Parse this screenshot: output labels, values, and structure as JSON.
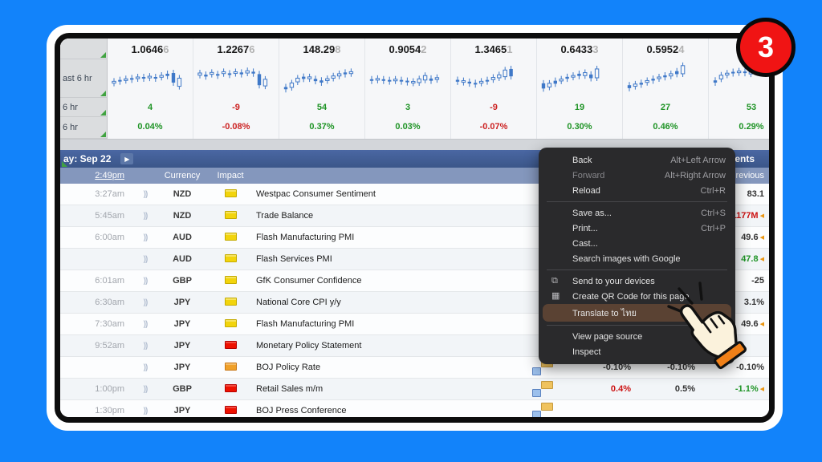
{
  "badge": {
    "label": "3"
  },
  "colors": {
    "frame_blue": "#1283fa",
    "candle_blue": "#3f78c8",
    "up_green": "#1f9426",
    "down_red": "#cc2222",
    "menu_highlight": "#5a4233",
    "badge_red": "#f01414",
    "impact_yellow": "#f2d40c",
    "impact_red": "#ee1100",
    "impact_orange": "#f0a028"
  },
  "market_panel": {
    "sidebar_rows": [
      "",
      "ast 6 hr",
      "6 hr",
      "6 hr"
    ],
    "tickers": [
      {
        "price": "1.0646",
        "price_last": "6",
        "change": "4",
        "pct": "0.04%",
        "dir": "up",
        "spark": [
          [
            62,
            5,
            1
          ],
          [
            58,
            4,
            0
          ],
          [
            55,
            4,
            1
          ],
          [
            53,
            4,
            0
          ],
          [
            50,
            4,
            1
          ],
          [
            50,
            4,
            0
          ],
          [
            48,
            4,
            1
          ],
          [
            50,
            4,
            0
          ],
          [
            46,
            5,
            1
          ],
          [
            42,
            6,
            0
          ],
          [
            50,
            26,
            0
          ],
          [
            62,
            22,
            1
          ]
        ]
      },
      {
        "price": "1.2267",
        "price_last": "6",
        "change": "-9",
        "pct": "-0.08%",
        "dir": "down",
        "spark": [
          [
            40,
            6,
            1
          ],
          [
            44,
            5,
            0
          ],
          [
            38,
            5,
            1
          ],
          [
            42,
            4,
            0
          ],
          [
            36,
            5,
            1
          ],
          [
            40,
            4,
            0
          ],
          [
            36,
            4,
            1
          ],
          [
            38,
            5,
            0
          ],
          [
            34,
            6,
            1
          ],
          [
            36,
            5,
            0
          ],
          [
            55,
            30,
            0
          ],
          [
            63,
            18,
            1
          ]
        ]
      },
      {
        "price": "148.29",
        "price_last": "8",
        "change": "54",
        "pct": "0.37%",
        "dir": "up",
        "spark": [
          [
            78,
            6,
            0
          ],
          [
            70,
            12,
            1
          ],
          [
            56,
            10,
            1
          ],
          [
            50,
            6,
            0
          ],
          [
            50,
            5,
            1
          ],
          [
            56,
            6,
            0
          ],
          [
            60,
            6,
            0
          ],
          [
            55,
            5,
            1
          ],
          [
            48,
            6,
            1
          ],
          [
            42,
            6,
            1
          ],
          [
            38,
            5,
            0
          ],
          [
            36,
            5,
            1
          ]
        ]
      },
      {
        "price": "0.9054",
        "price_last": "2",
        "change": "3",
        "pct": "0.03%",
        "dir": "up",
        "spark": [
          [
            56,
            4,
            0
          ],
          [
            54,
            4,
            1
          ],
          [
            56,
            3,
            0
          ],
          [
            58,
            4,
            0
          ],
          [
            56,
            4,
            1
          ],
          [
            58,
            3,
            0
          ],
          [
            60,
            4,
            0
          ],
          [
            62,
            4,
            1
          ],
          [
            58,
            10,
            1
          ],
          [
            50,
            12,
            1
          ],
          [
            55,
            6,
            0
          ],
          [
            52,
            5,
            1
          ]
        ]
      },
      {
        "price": "1.3465",
        "price_last": "1",
        "change": "-9",
        "pct": "-0.07%",
        "dir": "down",
        "spark": [
          [
            58,
            5,
            0
          ],
          [
            60,
            4,
            1
          ],
          [
            63,
            5,
            0
          ],
          [
            66,
            4,
            0
          ],
          [
            62,
            5,
            1
          ],
          [
            58,
            4,
            0
          ],
          [
            52,
            6,
            1
          ],
          [
            46,
            8,
            1
          ],
          [
            38,
            18,
            1
          ],
          [
            36,
            20,
            0
          ]
        ]
      },
      {
        "price": "0.6433",
        "price_last": "3",
        "change": "19",
        "pct": "0.30%",
        "dir": "up",
        "spark": [
          [
            72,
            14,
            0
          ],
          [
            70,
            10,
            1
          ],
          [
            62,
            8,
            0
          ],
          [
            56,
            5,
            1
          ],
          [
            50,
            5,
            0
          ],
          [
            46,
            4,
            1
          ],
          [
            42,
            6,
            0
          ],
          [
            40,
            8,
            1
          ],
          [
            46,
            10,
            0
          ],
          [
            38,
            24,
            1
          ]
        ]
      },
      {
        "price": "0.5952",
        "price_last": "4",
        "change": "27",
        "pct": "0.46%",
        "dir": "up",
        "spark": [
          [
            74,
            8,
            0
          ],
          [
            70,
            6,
            1
          ],
          [
            66,
            5,
            0
          ],
          [
            60,
            5,
            1
          ],
          [
            55,
            5,
            0
          ],
          [
            50,
            4,
            1
          ],
          [
            46,
            5,
            0
          ],
          [
            42,
            6,
            1
          ],
          [
            36,
            8,
            0
          ],
          [
            28,
            22,
            1
          ]
        ]
      },
      {
        "price": "",
        "price_last": "",
        "change": "53",
        "pct": "0.29%",
        "dir": "up",
        "spark": [
          [
            60,
            6,
            0
          ],
          [
            48,
            10,
            1
          ],
          [
            40,
            5,
            1
          ],
          [
            36,
            4,
            0
          ],
          [
            34,
            4,
            1
          ],
          [
            35,
            4,
            0
          ],
          [
            37,
            5,
            1
          ]
        ]
      }
    ]
  },
  "calendar": {
    "date_label": "ay: Sep 22",
    "next_arrow": "▶",
    "events_label": "Events",
    "time_link": "2:49pm",
    "columns": {
      "currency": "Currency",
      "impact": "Impact",
      "previous": "Previous"
    },
    "rows": [
      {
        "time": "3:27am",
        "currency": "NZD",
        "impact": "yellow",
        "event": "Westpac Consumer Sentiment",
        "detail": false,
        "previous": {
          "text": "83.1",
          "color": "neutral",
          "marker": false
        }
      },
      {
        "time": "5:45am",
        "currency": "NZD",
        "impact": "yellow",
        "event": "Trade Balance",
        "detail": false,
        "previous": {
          "text": "-1177M",
          "color": "red",
          "marker": true
        }
      },
      {
        "time": "6:00am",
        "currency": "AUD",
        "impact": "yellow",
        "event": "Flash Manufacturing PMI",
        "detail": false,
        "previous": {
          "text": "49.6",
          "color": "neutral",
          "marker": true
        }
      },
      {
        "time": "",
        "currency": "AUD",
        "impact": "yellow",
        "event": "Flash Services PMI",
        "detail": false,
        "previous": {
          "text": "47.8",
          "color": "green",
          "marker": true
        }
      },
      {
        "time": "6:01am",
        "currency": "GBP",
        "impact": "yellow",
        "event": "GfK Consumer Confidence",
        "detail": false,
        "previous": {
          "text": "-25",
          "color": "neutral",
          "marker": false
        }
      },
      {
        "time": "6:30am",
        "currency": "JPY",
        "impact": "yellow",
        "event": "National Core CPI y/y",
        "detail": false,
        "previous": {
          "text": "3.1%",
          "color": "neutral",
          "marker": false
        }
      },
      {
        "time": "7:30am",
        "currency": "JPY",
        "impact": "yellow",
        "event": "Flash Manufacturing PMI",
        "detail": false,
        "previous": {
          "text": "49.6",
          "color": "neutral",
          "marker": true
        }
      },
      {
        "time": "9:52am",
        "currency": "JPY",
        "impact": "red",
        "event": "Monetary Policy Statement",
        "detail": false
      },
      {
        "time": "",
        "currency": "JPY",
        "impact": "orange",
        "event": "BOJ Policy Rate",
        "detail": true,
        "actual": {
          "text": "-0.10%",
          "color": "neutral"
        },
        "forecast": {
          "text": "-0.10%",
          "color": "neutral"
        },
        "previous": {
          "text": "-0.10%",
          "color": "neutral",
          "marker": false
        }
      },
      {
        "time": "1:00pm",
        "currency": "GBP",
        "impact": "red",
        "event": "Retail Sales m/m",
        "detail": true,
        "actual": {
          "text": "0.4%",
          "color": "red"
        },
        "forecast": {
          "text": "0.5%",
          "color": "neutral"
        },
        "previous": {
          "text": "-1.1%",
          "color": "green",
          "marker": true
        }
      },
      {
        "time": "1:30pm",
        "currency": "JPY",
        "impact": "red",
        "event": "BOJ Press Conference",
        "detail": true
      }
    ]
  },
  "context_menu": {
    "items": [
      {
        "label": "Back",
        "shortcut": "Alt+Left Arrow"
      },
      {
        "label": "Forward",
        "shortcut": "Alt+Right Arrow",
        "disabled": true
      },
      {
        "label": "Reload",
        "shortcut": "Ctrl+R"
      },
      {
        "separator": true
      },
      {
        "label": "Save as...",
        "shortcut": "Ctrl+S"
      },
      {
        "label": "Print...",
        "shortcut": "Ctrl+P"
      },
      {
        "label": "Cast..."
      },
      {
        "label": "Search images with Google"
      },
      {
        "separator": true
      },
      {
        "label": "Send to your devices",
        "icon": "devices"
      },
      {
        "label": "Create QR Code for this page",
        "icon": "qr"
      },
      {
        "label": "Translate to ไทย",
        "highlighted": true
      },
      {
        "separator": true
      },
      {
        "label": "View page source"
      },
      {
        "label": "Inspect"
      }
    ]
  }
}
